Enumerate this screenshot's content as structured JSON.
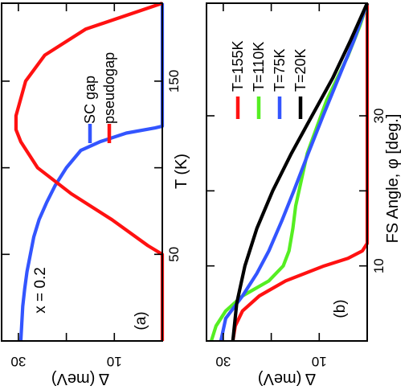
{
  "chart_data": [
    {
      "panel": "(a)",
      "type": "line",
      "annotation": "x = 0.2",
      "xlabel": "T (K)",
      "ylabel": "Δ (meV)",
      "xlim": [
        0,
        195
      ],
      "ylim": [
        0,
        33.5
      ],
      "xticks": [
        50,
        100,
        150
      ],
      "xtick_labels": [
        "50",
        "",
        "150"
      ],
      "yticks": [
        10,
        20,
        30
      ],
      "ytick_labels": [
        "10",
        "",
        "30"
      ],
      "legend": [
        {
          "name": "SC gap",
          "color": "#3355ff"
        },
        {
          "name": "pseudogap",
          "color": "#ff1111"
        }
      ],
      "legend_position": "top-right",
      "series": [
        {
          "name": "SC gap",
          "color": "#3355ff",
          "x": [
            0,
            10,
            20,
            30,
            40,
            50,
            60,
            70,
            80,
            90,
            100,
            110,
            115,
            120,
            123,
            124,
            195
          ],
          "y": [
            29.5,
            29.3,
            29.1,
            28.7,
            28.2,
            27.5,
            26.8,
            25.7,
            24.1,
            22.3,
            20,
            17,
            13,
            7.5,
            1.5,
            0,
            0
          ]
        },
        {
          "name": "pseudogap",
          "color": "#ff1111",
          "x": [
            0,
            50,
            55,
            70,
            85,
            100,
            115,
            122,
            130,
            150,
            165,
            180,
            195
          ],
          "y": [
            0,
            0,
            3,
            10.5,
            19,
            26,
            29.5,
            30.5,
            30.5,
            28.5,
            24.5,
            16,
            0
          ]
        }
      ]
    },
    {
      "panel": "(b)",
      "type": "line",
      "xlabel": "FS Angle, φ [deg.]",
      "ylabel": "Δ (meV)",
      "xlim": [
        0,
        45
      ],
      "ylim": [
        0,
        33.5
      ],
      "xticks": [
        10,
        20,
        30
      ],
      "xtick_labels": [
        "10",
        "",
        "30"
      ],
      "yticks": [
        10,
        20,
        30
      ],
      "ytick_labels": [
        "10",
        "",
        "30"
      ],
      "legend": [
        {
          "name": "T=155K",
          "color": "#ff1111"
        },
        {
          "name": "T=110K",
          "color": "#55ee22"
        },
        {
          "name": "T=75K",
          "color": "#3355ff"
        },
        {
          "name": "T=20K",
          "color": "#000000"
        }
      ],
      "legend_position": "top-right",
      "series": [
        {
          "name": "T=155K",
          "color": "#ff1111",
          "x": [
            0,
            2,
            4,
            6,
            8,
            10,
            11,
            12,
            13,
            45
          ],
          "y": [
            28,
            27.5,
            26,
            22.5,
            17,
            9,
            4,
            1,
            0,
            0
          ]
        },
        {
          "name": "T=110K",
          "color": "#55ee22",
          "x": [
            0,
            2,
            4,
            6,
            8,
            10,
            12,
            15,
            18,
            25,
            32,
            38,
            42,
            45
          ],
          "y": [
            32.5,
            31.5,
            29.5,
            26,
            20.5,
            17.5,
            16.3,
            15.5,
            14.9,
            12.5,
            8.5,
            4,
            1.5,
            0
          ]
        },
        {
          "name": "T=75K",
          "color": "#3355ff",
          "x": [
            0,
            3,
            6,
            9,
            12,
            16,
            20,
            25,
            30,
            35,
            40,
            45
          ],
          "y": [
            30.5,
            29.5,
            26,
            23,
            20.5,
            17.8,
            15.3,
            12.3,
            9.2,
            6,
            2.8,
            0
          ]
        },
        {
          "name": "T=20K",
          "color": "#000000",
          "x": [
            0,
            5,
            10,
            15,
            20,
            25,
            30,
            35,
            40,
            45
          ],
          "y": [
            28,
            27.2,
            25.5,
            23,
            19.7,
            15.8,
            11.5,
            7.2,
            3.5,
            0
          ]
        }
      ]
    }
  ]
}
